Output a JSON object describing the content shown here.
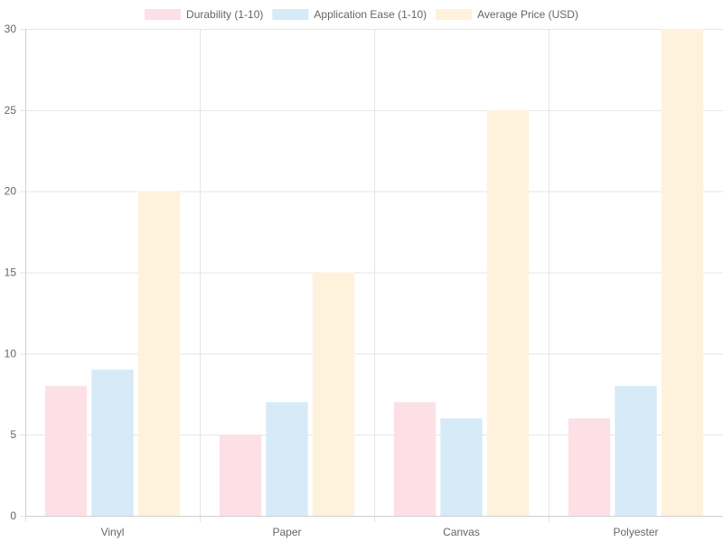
{
  "chart_data": {
    "type": "bar",
    "categories": [
      "Vinyl",
      "Paper",
      "Canvas",
      "Polyester"
    ],
    "series": [
      {
        "name": "Durability (1-10)",
        "values": [
          8,
          5,
          7,
          6
        ],
        "fill": "#fde0e6",
        "stroke": "#ffb3c1"
      },
      {
        "name": "Application Ease (1-10)",
        "values": [
          9,
          7,
          6,
          8
        ],
        "fill": "#d6eaf8",
        "stroke": "#9ccbf0"
      },
      {
        "name": "Average Price (USD)",
        "values": [
          20,
          15,
          25,
          30
        ],
        "fill": "#fff2dc",
        "stroke": "#ffd99e"
      }
    ],
    "ylim": [
      0,
      30
    ],
    "yticks": [
      0,
      5,
      10,
      15,
      20,
      25,
      30
    ],
    "grid": true,
    "legend_position": "top"
  }
}
